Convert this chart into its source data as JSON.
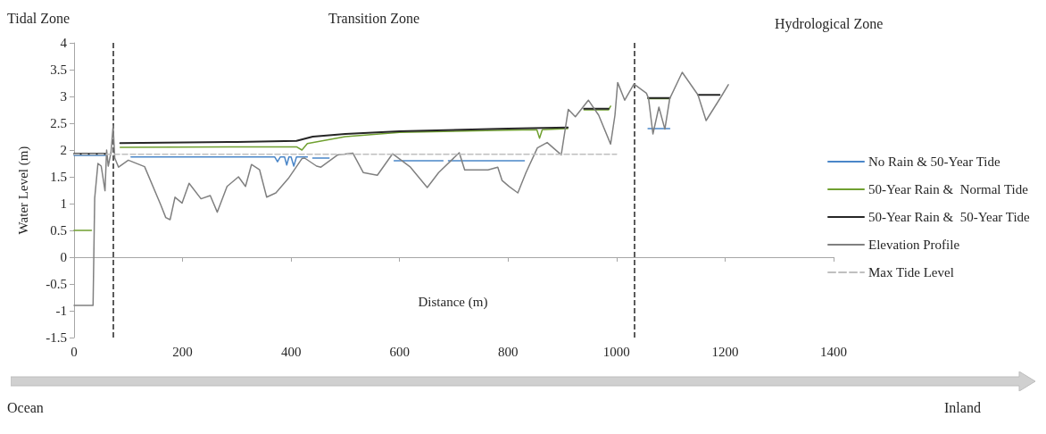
{
  "chart_data": {
    "type": "line",
    "xlabel": "Distance (m)",
    "ylabel": "Water Level (m)",
    "xlim": [
      0,
      1400
    ],
    "xticks": [
      0,
      200,
      400,
      600,
      800,
      1000,
      1200,
      1400
    ],
    "ylim": [
      -1.5,
      4
    ],
    "yticks": [
      -1.5,
      -1,
      -0.5,
      0,
      0.5,
      1,
      1.5,
      2,
      2.5,
      3,
      3.5,
      4
    ],
    "legend": "right",
    "marker": "none",
    "series": [
      {
        "name": "No Rain & 50-Year Tide",
        "color": "#4a86c8",
        "x": [
          0,
          58,
          70,
          105,
          370,
          375,
          380,
          388,
          392,
          396,
          400,
          405,
          410,
          430,
          435,
          440,
          470,
          475,
          590,
          680,
          685,
          690,
          830,
          835,
          1058,
          1098
        ],
        "values": [
          1.9,
          1.9,
          null,
          1.87,
          1.87,
          1.78,
          1.87,
          1.87,
          1.72,
          1.87,
          1.87,
          1.7,
          1.87,
          1.87,
          null,
          1.85,
          1.85,
          null,
          1.8,
          1.8,
          null,
          1.8,
          1.8,
          null,
          2.4,
          2.4
        ]
      },
      {
        "name": "50-Year Rain &  Normal Tide",
        "color": "#70a030",
        "x": [
          0,
          32,
          40,
          85,
          300,
          410,
          420,
          430,
          500,
          600,
          800,
          853,
          858,
          863,
          910,
          920,
          940,
          985,
          989,
          995,
          1058,
          1098
        ],
        "values": [
          0.5,
          0.5,
          null,
          2.05,
          2.06,
          2.06,
          2.0,
          2.12,
          2.25,
          2.33,
          2.37,
          2.38,
          2.22,
          2.38,
          2.4,
          null,
          2.75,
          2.75,
          2.82,
          null,
          2.96,
          2.96
        ]
      },
      {
        "name": "50-Year Rain &  50-Year Tide",
        "color": "#262626",
        "x": [
          0,
          58,
          70,
          85,
          300,
          410,
          440,
          500,
          600,
          800,
          910,
          920,
          940,
          985,
          995,
          1058,
          1098,
          1105,
          1150,
          1190
        ],
        "values": [
          1.93,
          1.93,
          null,
          2.13,
          2.15,
          2.17,
          2.25,
          2.3,
          2.35,
          2.4,
          2.42,
          null,
          2.77,
          2.77,
          null,
          2.97,
          2.97,
          null,
          3.03,
          3.03
        ]
      },
      {
        "name": "Elevation Profile",
        "color": "#808080",
        "x": [
          0,
          35,
          38,
          44,
          50,
          57,
          60,
          63,
          68,
          72,
          75,
          82,
          100,
          130,
          160,
          169,
          177,
          186,
          199,
          212,
          234,
          251,
          264,
          282,
          303,
          316,
          327,
          342,
          355,
          372,
          395,
          420,
          425,
          447,
          455,
          486,
          514,
          533,
          559,
          587,
          620,
          651,
          672,
          710,
          720,
          763,
          781,
          789,
          802,
          818,
          833,
          854,
          872,
          898,
          911,
          924,
          948,
          967,
          989,
          997,
          1002,
          1015,
          1032,
          1055,
          1059,
          1067,
          1078,
          1089,
          1098,
          1121,
          1150,
          1165,
          1193,
          1206
        ],
        "values": [
          -0.9,
          -0.9,
          1.1,
          1.75,
          1.7,
          1.24,
          2.0,
          1.7,
          1.95,
          2.45,
          1.85,
          1.68,
          1.81,
          1.69,
          0.97,
          0.74,
          0.7,
          1.12,
          1.01,
          1.38,
          1.09,
          1.15,
          0.84,
          1.32,
          1.5,
          1.32,
          1.73,
          1.63,
          1.12,
          1.2,
          1.47,
          1.84,
          1.85,
          1.7,
          1.68,
          1.91,
          1.94,
          1.58,
          1.53,
          1.93,
          1.68,
          1.3,
          1.58,
          1.95,
          1.63,
          1.63,
          1.68,
          1.43,
          1.32,
          1.2,
          1.58,
          2.04,
          2.14,
          1.91,
          2.76,
          2.62,
          2.93,
          2.65,
          2.11,
          2.65,
          3.26,
          2.93,
          3.23,
          3.06,
          2.96,
          2.3,
          2.8,
          2.39,
          2.96,
          3.45,
          3.03,
          2.55,
          3.0,
          3.22
        ]
      },
      {
        "name": "Max Tide Level",
        "color": "#bfbfbf",
        "line_style": "dashed",
        "x": [
          0,
          1000
        ],
        "values": [
          1.92,
          1.92
        ]
      }
    ],
    "ref_lines": [
      {
        "axis": "x",
        "value": 72,
        "color": "#262626",
        "line_style": "dashed"
      },
      {
        "axis": "x",
        "value": 1033,
        "color": "#262626",
        "line_style": "dashed"
      }
    ],
    "annotations": [
      "Tidal Zone",
      "Transition Zone",
      "Hydrological Zone",
      "Ocean",
      "Inland"
    ]
  }
}
